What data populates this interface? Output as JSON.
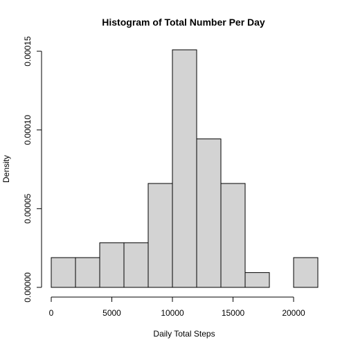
{
  "chart_data": {
    "type": "bar",
    "title": "Histogram of Total Number Per Day",
    "xlabel": "Daily Total Steps",
    "ylabel": "Density",
    "bins": [
      {
        "start": 0,
        "end": 2000,
        "value": 1.89e-05
      },
      {
        "start": 2000,
        "end": 4000,
        "value": 1.89e-05
      },
      {
        "start": 4000,
        "end": 6000,
        "value": 2.83e-05
      },
      {
        "start": 6000,
        "end": 8000,
        "value": 2.83e-05
      },
      {
        "start": 8000,
        "end": 10000,
        "value": 6.6e-05
      },
      {
        "start": 10000,
        "end": 12000,
        "value": 0.0001509
      },
      {
        "start": 12000,
        "end": 14000,
        "value": 9.43e-05
      },
      {
        "start": 14000,
        "end": 16000,
        "value": 6.6e-05
      },
      {
        "start": 16000,
        "end": 18000,
        "value": 9.4e-06
      },
      {
        "start": 18000,
        "end": 20000,
        "value": 0
      },
      {
        "start": 20000,
        "end": 22000,
        "value": 1.89e-05
      }
    ],
    "xlim": [
      0,
      22000
    ],
    "ylim": [
      0,
      0.00015
    ],
    "xticks": [
      0,
      5000,
      10000,
      15000,
      20000
    ],
    "xtick_labels": [
      "0",
      "5000",
      "10000",
      "15000",
      "20000"
    ],
    "yticks": [
      0,
      5e-05,
      0.0001,
      0.00015
    ],
    "ytick_labels": [
      "0.00000",
      "0.00005",
      "0.00010",
      "0.00015"
    ],
    "bar_color": "#d3d3d3",
    "grid": false,
    "legend": false
  }
}
